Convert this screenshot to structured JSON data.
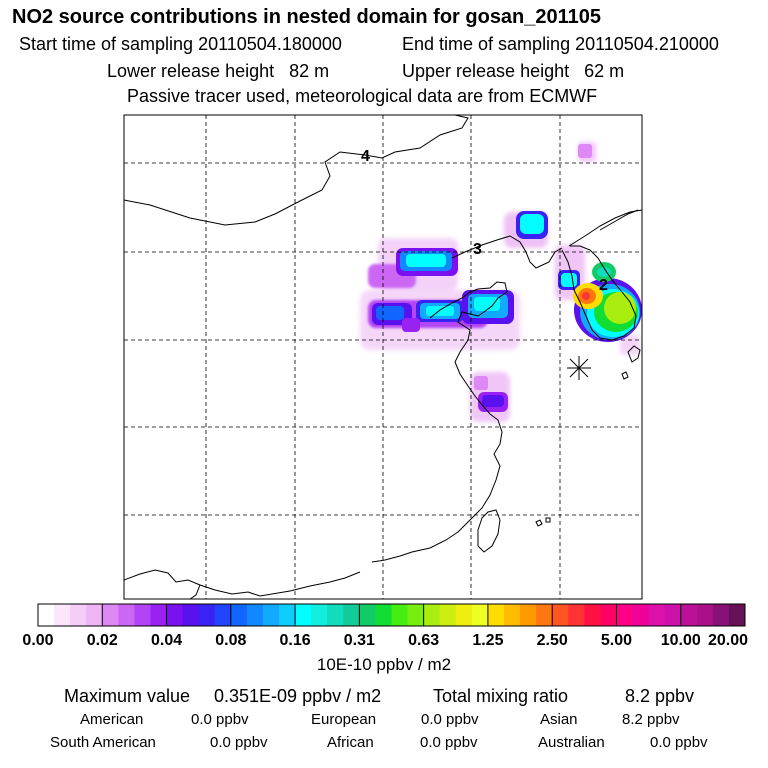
{
  "header": {
    "title": "NO2 source contributions in nested domain for gosan_201105",
    "start_label": "Start time of sampling 20110504.180000",
    "end_label": "End time of sampling 20110504.210000",
    "lower_label": "Lower release height   82 m",
    "upper_label": "Upper release height   62 m",
    "tracer_note": "Passive tracer used, meteorological data are from ECMWF"
  },
  "chart_data": {
    "type": "heatmap",
    "title": "NO2 source contributions in nested domain for gosan_201105",
    "region_labels": [
      "4",
      "3",
      "2"
    ],
    "station_marker": "receptor-star",
    "colorbar": {
      "ticks": [
        "0.00",
        "0.02",
        "0.04",
        "0.08",
        "0.16",
        "0.31",
        "0.63",
        "1.25",
        "2.50",
        "5.00",
        "10.00",
        "20.00"
      ],
      "unit": "10E-10 ppbv / m2",
      "colors": [
        "#ffffff",
        "#fbe6fb",
        "#f5cdf7",
        "#eeb4f3",
        "#dd88f5",
        "#cc66f5",
        "#b244f5",
        "#9922f2",
        "#7a11f0",
        "#5a11f0",
        "#3a22f5",
        "#2244ff",
        "#1166ff",
        "#1188ff",
        "#11aaff",
        "#11ccff",
        "#00ffff",
        "#11eedd",
        "#11ddbb",
        "#11cc99",
        "#11cc66",
        "#11dd33",
        "#44ee11",
        "#77ee11",
        "#aaee11",
        "#ccee11",
        "#eeee11",
        "#eeff22",
        "#ffdd00",
        "#ffbb00",
        "#ff9900",
        "#ff7711",
        "#ff5522",
        "#ff3333",
        "#ff1144",
        "#ff0066",
        "#ff0088",
        "#ee0099",
        "#dd11aa",
        "#cc11aa",
        "#bb1199",
        "#aa1188",
        "#881177",
        "#661155"
      ]
    }
  },
  "footer": {
    "max_label": "Maximum value",
    "max_value": "0.351E-09 ppbv / m2",
    "total_label": "Total mixing ratio",
    "total_value": "8.2 ppbv",
    "sources": [
      {
        "name": "American",
        "value": "0.0 ppbv"
      },
      {
        "name": "European",
        "value": "0.0 ppbv"
      },
      {
        "name": "Asian",
        "value": "8.2 ppbv"
      },
      {
        "name": "South American",
        "value": "0.0 ppbv"
      },
      {
        "name": "African",
        "value": "0.0 ppbv"
      },
      {
        "name": "Australian",
        "value": "0.0 ppbv"
      }
    ]
  }
}
